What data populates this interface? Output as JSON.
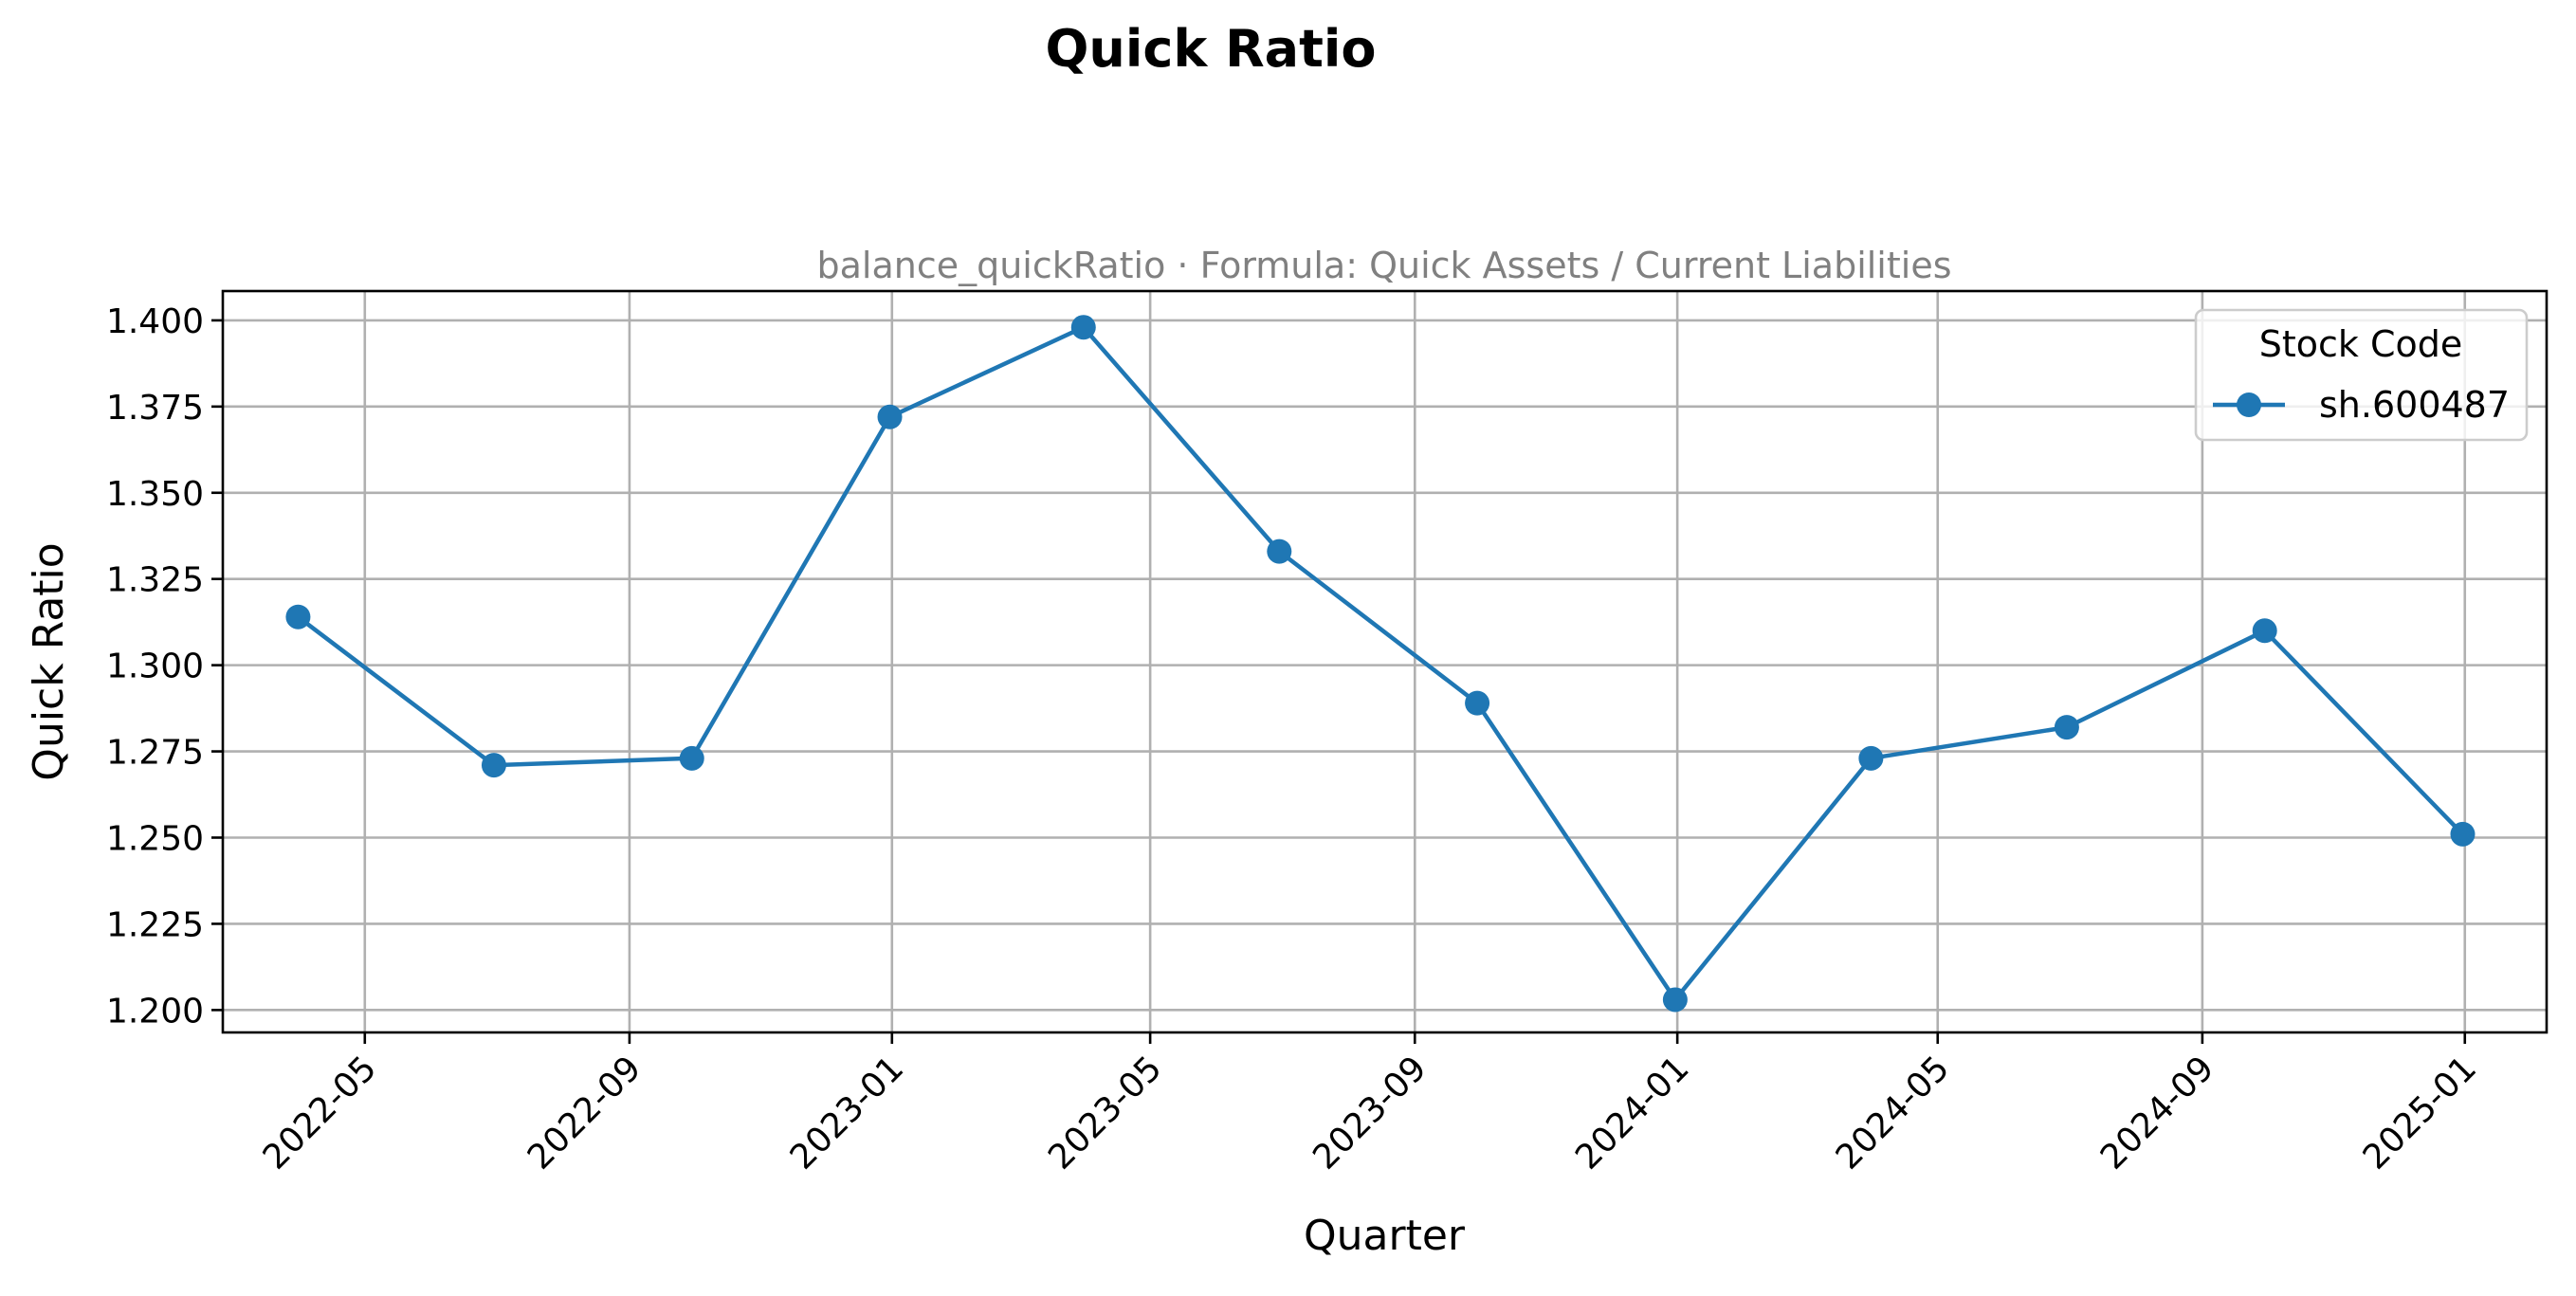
{
  "chart_data": {
    "type": "line",
    "title": "Quick Ratio",
    "subtitle": "balance_quickRatio · Formula: Quick Assets / Current Liabilities",
    "xlabel": "Quarter",
    "ylabel": "Quick Ratio",
    "x_type": "date",
    "xlim": [
      "2022-02-24",
      "2025-02-08"
    ],
    "ylim": [
      1.1935,
      1.4085
    ],
    "x_ticks": [
      "2022-05-01",
      "2022-09-01",
      "2023-01-01",
      "2023-05-01",
      "2023-09-01",
      "2024-01-01",
      "2024-05-01",
      "2024-09-01",
      "2025-01-01"
    ],
    "x_tick_labels": [
      "2022-05",
      "2022-09",
      "2023-01",
      "2023-05",
      "2023-09",
      "2024-01",
      "2024-05",
      "2024-09",
      "2025-01"
    ],
    "y_ticks": [
      1.2,
      1.225,
      1.25,
      1.275,
      1.3,
      1.325,
      1.35,
      1.375,
      1.4
    ],
    "y_tick_labels": [
      "1.200",
      "1.225",
      "1.250",
      "1.275",
      "1.300",
      "1.325",
      "1.350",
      "1.375",
      "1.400"
    ],
    "grid": true,
    "legend": {
      "title": "Stock Code",
      "position": "top-right"
    },
    "series": [
      {
        "name": "sh.600487",
        "color": "#1f77b4",
        "marker": "circle",
        "x": [
          "2022-03-31",
          "2022-06-30",
          "2022-09-30",
          "2022-12-31",
          "2023-03-31",
          "2023-06-30",
          "2023-09-30",
          "2023-12-31",
          "2024-03-31",
          "2024-06-30",
          "2024-09-30",
          "2024-12-31"
        ],
        "values": [
          1.314,
          1.271,
          1.273,
          1.372,
          1.398,
          1.333,
          1.289,
          1.203,
          1.273,
          1.282,
          1.31,
          1.251
        ]
      }
    ]
  }
}
